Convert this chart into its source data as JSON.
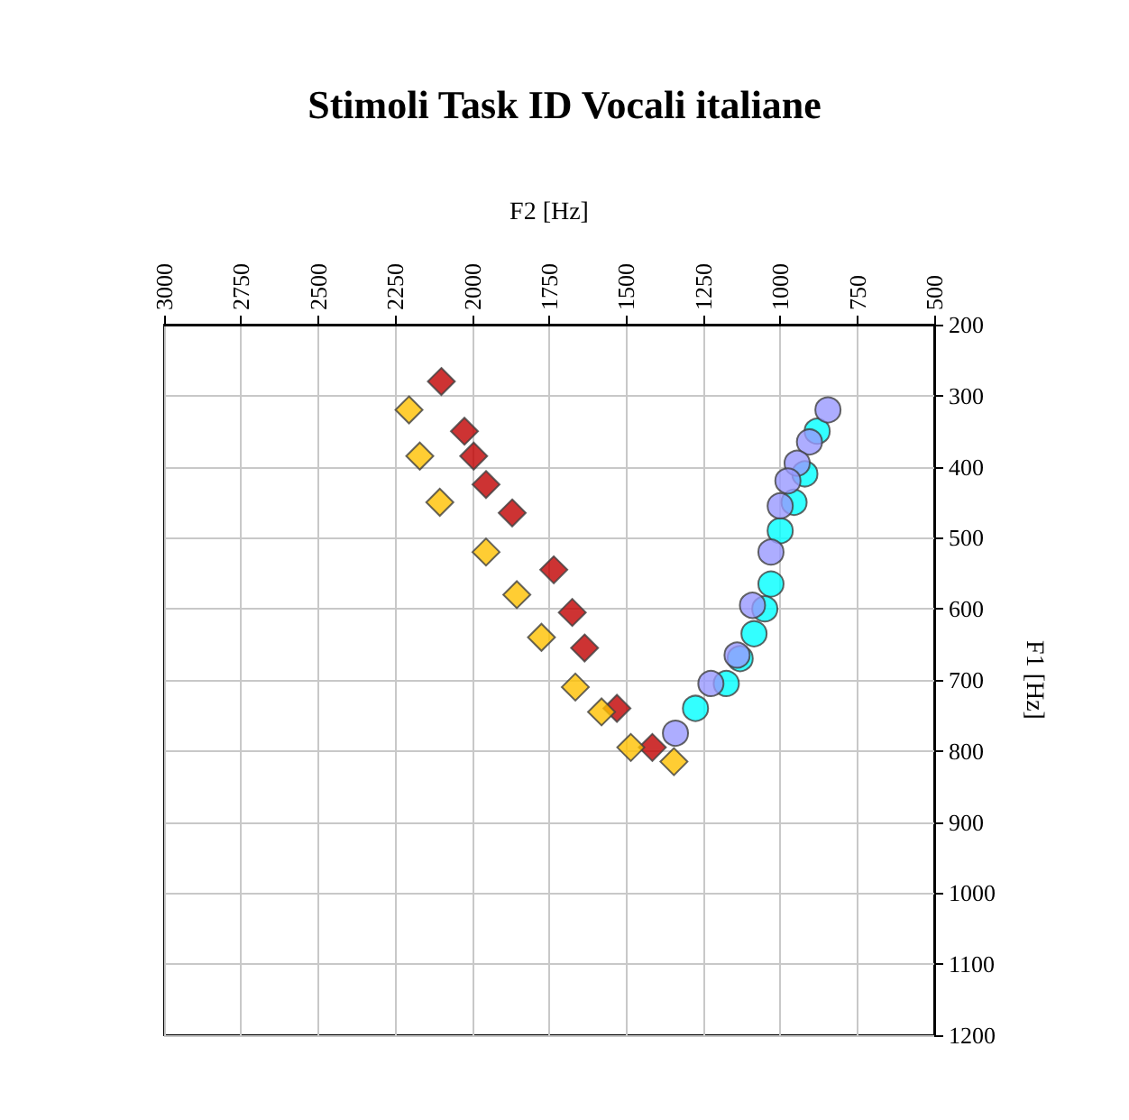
{
  "chart_data": {
    "type": "scatter",
    "title": "Stimoli Task ID Vocali italiane",
    "xlabel": "F2 [Hz]",
    "ylabel": "F1 [Hz]",
    "xlim": [
      3000,
      500
    ],
    "xticks": [
      3000,
      2750,
      2500,
      2250,
      2000,
      1750,
      1500,
      1250,
      1000,
      750,
      500
    ],
    "ylim": [
      1200,
      200
    ],
    "yticks": [
      200,
      300,
      400,
      500,
      600,
      700,
      800,
      900,
      1000,
      1100,
      1200
    ],
    "grid": true,
    "series": [
      {
        "color": "#c00000",
        "marker": "diamond",
        "x": [
          2100,
          2025,
          1995,
          1955,
          1870,
          1735,
          1675,
          1635,
          1530,
          1415
        ],
        "values": [
          280,
          350,
          385,
          425,
          465,
          545,
          605,
          655,
          740,
          795
        ]
      },
      {
        "color": "#ffc000",
        "marker": "diamond",
        "x": [
          2205,
          2170,
          2105,
          1955,
          1855,
          1775,
          1665,
          1580,
          1485,
          1345
        ],
        "values": [
          320,
          385,
          450,
          520,
          580,
          640,
          710,
          745,
          795,
          815
        ]
      },
      {
        "color": "#00ffff",
        "marker": "circle",
        "x": [
          880,
          920,
          955,
          1000,
          1030,
          1050,
          1085,
          1130,
          1175,
          1275
        ],
        "values": [
          350,
          410,
          450,
          490,
          565,
          600,
          635,
          670,
          705,
          740
        ]
      },
      {
        "color": "#9999ff",
        "marker": "circle",
        "x": [
          845,
          905,
          945,
          975,
          1000,
          1030,
          1090,
          1140,
          1225,
          1340
        ],
        "values": [
          320,
          365,
          395,
          420,
          455,
          520,
          595,
          665,
          705,
          775
        ]
      }
    ]
  }
}
